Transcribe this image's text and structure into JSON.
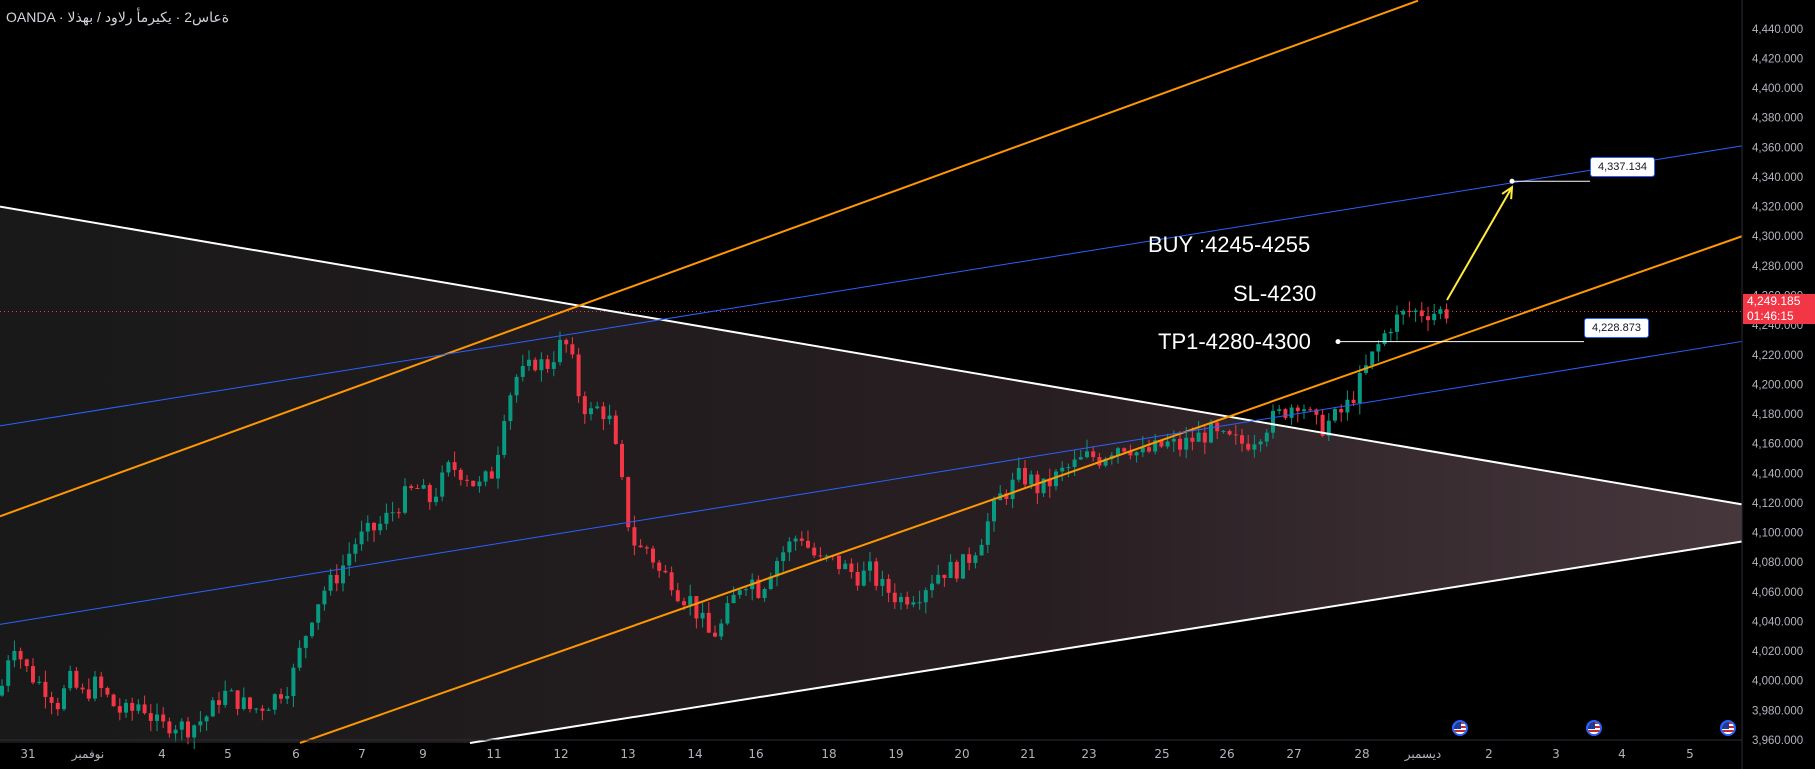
{
  "header": {
    "symbol_title": "OANDA · ةعاس2 · يكيرمأ رلاود / بهذلا"
  },
  "annotations": {
    "buy": "BUY :4245-4255",
    "sl": "SL-4230",
    "tp": "TP1-4280-4300"
  },
  "labels": {
    "target_price": "4,337.134",
    "mid_price": "4,228.873"
  },
  "current_price": {
    "value": "4,249.185",
    "countdown": "01:46:15"
  },
  "colors": {
    "background": "#000000",
    "up_candle": "#089981",
    "down_candle": "#f23645",
    "orange_channel": "#ff9800",
    "blue_channel": "#2962ff",
    "triangle_lines": "#ffffff",
    "arrow": "#ffeb3b",
    "current_price_tag": "#f23645"
  },
  "icons": [
    "us-flag-icon",
    "us-flag-icon",
    "us-flag-icon"
  ],
  "chart_data": {
    "type": "candlestick",
    "ylim": [
      3960,
      4450
    ],
    "y_ticks": [
      "4,440.000",
      "4,420.000",
      "4,400.000",
      "4,380.000",
      "4,360.000",
      "4,340.000",
      "4,320.000",
      "4,300.000",
      "4,280.000",
      "4,260.000",
      "4,240.000",
      "4,220.000",
      "4,200.000",
      "4,180.000",
      "4,160.000",
      "4,140.000",
      "4,120.000",
      "4,100.000",
      "4,080.000",
      "4,060.000",
      "4,040.000",
      "4,020.000",
      "4,000.000",
      "3,980.000",
      "3,960.000"
    ],
    "x_ticks": [
      "31",
      "نوفمبر",
      "4",
      "5",
      "6",
      "7",
      "9",
      "11",
      "12",
      "13",
      "14",
      "16",
      "18",
      "19",
      "20",
      "21",
      "23",
      "25",
      "26",
      "27",
      "28",
      "ديسمبر",
      "2",
      "3",
      "4",
      "5"
    ],
    "last_price": 4249.185,
    "close_path": [
      [
        0,
        3990
      ],
      [
        12,
        4030
      ],
      [
        24,
        4010
      ],
      [
        36,
        4000
      ],
      [
        46,
        3995
      ],
      [
        58,
        3985
      ],
      [
        70,
        4000
      ],
      [
        82,
        3990
      ],
      [
        96,
        3998
      ],
      [
        108,
        3988
      ],
      [
        118,
        3980
      ],
      [
        130,
        3978
      ],
      [
        140,
        3986
      ],
      [
        152,
        3975
      ],
      [
        160,
        3968
      ],
      [
        172,
        3972
      ],
      [
        186,
        3968
      ],
      [
        198,
        3972
      ],
      [
        210,
        3978
      ],
      [
        222,
        3992
      ],
      [
        240,
        3986
      ],
      [
        252,
        3980
      ],
      [
        270,
        3986
      ],
      [
        282,
        3994
      ],
      [
        290,
        3998
      ],
      [
        300,
        4020
      ],
      [
        312,
        4045
      ],
      [
        322,
        4060
      ],
      [
        334,
        4068
      ],
      [
        345,
        4080
      ],
      [
        353,
        4092
      ],
      [
        364,
        4098
      ],
      [
        380,
        4105
      ],
      [
        392,
        4114
      ],
      [
        404,
        4124
      ],
      [
        416,
        4130
      ],
      [
        430,
        4122
      ],
      [
        440,
        4132
      ],
      [
        450,
        4145
      ],
      [
        465,
        4140
      ],
      [
        478,
        4130
      ],
      [
        494,
        4142
      ],
      [
        505,
        4185
      ],
      [
        516,
        4205
      ],
      [
        526,
        4208
      ],
      [
        536,
        4216
      ],
      [
        546,
        4212
      ],
      [
        556,
        4222
      ],
      [
        564,
        4230
      ],
      [
        572,
        4215
      ],
      [
        580,
        4190
      ],
      [
        590,
        4180
      ],
      [
        600,
        4185
      ],
      [
        610,
        4175
      ],
      [
        620,
        4140
      ],
      [
        630,
        4100
      ],
      [
        638,
        4088
      ],
      [
        648,
        4090
      ],
      [
        660,
        4072
      ],
      [
        670,
        4070
      ],
      [
        680,
        4058
      ],
      [
        690,
        4055
      ],
      [
        700,
        4042
      ],
      [
        710,
        4030
      ],
      [
        720,
        4035
      ],
      [
        730,
        4050
      ],
      [
        740,
        4065
      ],
      [
        750,
        4070
      ],
      [
        760,
        4060
      ],
      [
        770,
        4075
      ],
      [
        780,
        4085
      ],
      [
        790,
        4092
      ],
      [
        800,
        4100
      ],
      [
        810,
        4088
      ],
      [
        820,
        4080
      ],
      [
        830,
        4082
      ],
      [
        840,
        4078
      ],
      [
        850,
        4074
      ],
      [
        860,
        4070
      ],
      [
        870,
        4074
      ],
      [
        880,
        4064
      ],
      [
        890,
        4060
      ],
      [
        900,
        4055
      ],
      [
        910,
        4058
      ],
      [
        920,
        4060
      ],
      [
        930,
        4068
      ],
      [
        940,
        4074
      ],
      [
        950,
        4075
      ],
      [
        960,
        4076
      ],
      [
        970,
        4084
      ],
      [
        980,
        4095
      ],
      [
        990,
        4110
      ],
      [
        1000,
        4124
      ],
      [
        1010,
        4130
      ],
      [
        1020,
        4138
      ],
      [
        1030,
        4136
      ],
      [
        1040,
        4128
      ],
      [
        1050,
        4134
      ],
      [
        1060,
        4140
      ],
      [
        1070,
        4144
      ],
      [
        1080,
        4148
      ],
      [
        1090,
        4152
      ],
      [
        1100,
        4150
      ],
      [
        1110,
        4156
      ],
      [
        1120,
        4160
      ],
      [
        1130,
        4158
      ],
      [
        1140,
        4152
      ],
      [
        1150,
        4155
      ],
      [
        1160,
        4158
      ],
      [
        1170,
        4160
      ],
      [
        1180,
        4158
      ],
      [
        1190,
        4162
      ],
      [
        1200,
        4165
      ],
      [
        1210,
        4168
      ],
      [
        1220,
        4163
      ],
      [
        1230,
        4162
      ],
      [
        1240,
        4160
      ],
      [
        1250,
        4162
      ],
      [
        1260,
        4168
      ],
      [
        1270,
        4175
      ],
      [
        1280,
        4180
      ],
      [
        1290,
        4185
      ],
      [
        1300,
        4190
      ],
      [
        1310,
        4178
      ],
      [
        1320,
        4170
      ],
      [
        1330,
        4175
      ],
      [
        1340,
        4180
      ],
      [
        1350,
        4188
      ],
      [
        1360,
        4202
      ],
      [
        1370,
        4216
      ],
      [
        1380,
        4228
      ],
      [
        1390,
        4240
      ],
      [
        1400,
        4246
      ],
      [
        1410,
        4249
      ]
    ],
    "lines": {
      "orange_upper": [
        [
          0,
          4111
        ],
        [
          1418,
          4459
        ]
      ],
      "orange_lower": [
        [
          300,
          3958
        ],
        [
          1742,
          4300
        ]
      ],
      "blue_upper": [
        [
          0,
          4172
        ],
        [
          1742,
          4361
        ]
      ],
      "blue_lower": [
        [
          0,
          4038
        ],
        [
          1742,
          4229
        ]
      ],
      "triangle_top": [
        [
          0,
          4320
        ],
        [
          1742,
          4119
        ]
      ],
      "triangle_bottom": [
        [
          470,
          3958
        ],
        [
          1742,
          4094
        ]
      ],
      "current_price_line": 4249.185
    },
    "target": 4337.134,
    "mid_level": 4228.873
  }
}
